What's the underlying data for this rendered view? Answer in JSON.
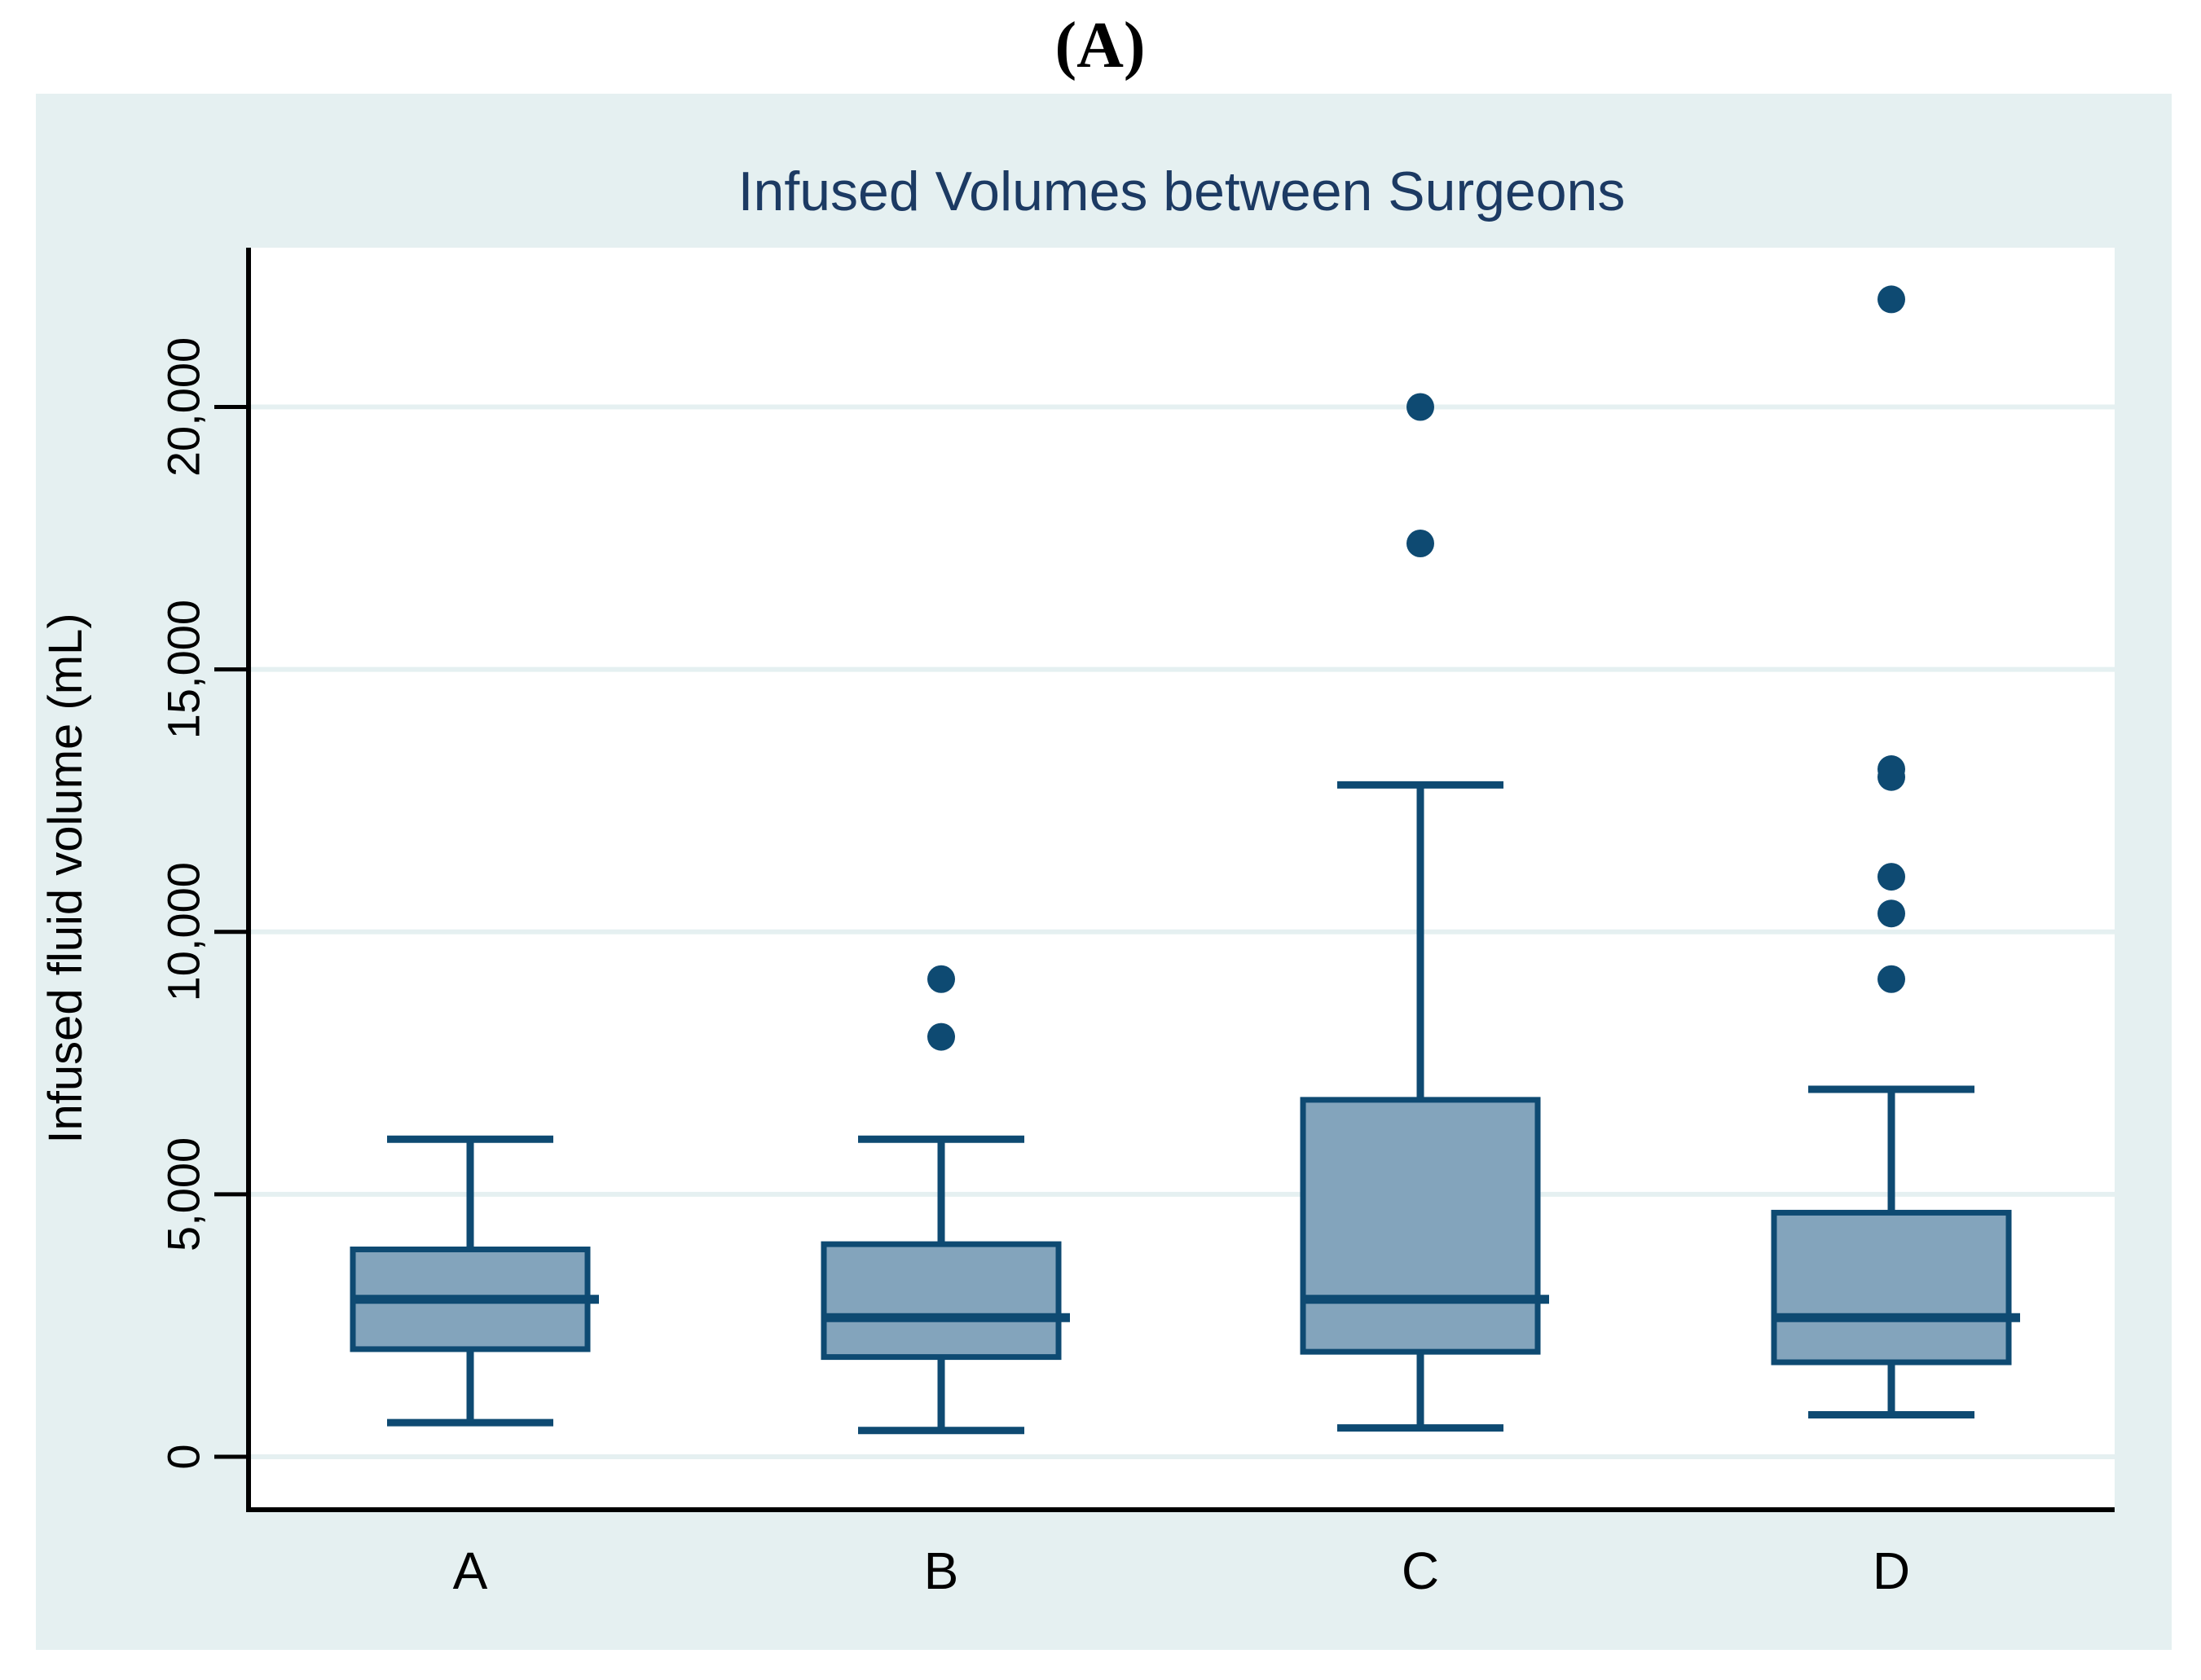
{
  "figure_label": "(A)",
  "chart_data": {
    "type": "box",
    "title": "Infused Volumes between Surgeons",
    "ylabel": "Infused fluid volume (mL)",
    "xlabel": "",
    "categories": [
      "A",
      "B",
      "C",
      "D"
    ],
    "ylim": [
      0,
      22500
    ],
    "yticks": [
      0,
      5000,
      10000,
      15000,
      20000
    ],
    "ytick_labels": [
      "0",
      "5,000",
      "10,000",
      "15,000",
      "20,000"
    ],
    "grid": "horizontal-gridlines-on",
    "legend": "none",
    "series": [
      {
        "category": "A",
        "min": 650,
        "q1": 2050,
        "median": 3000,
        "q3": 3950,
        "max": 6050,
        "outliers": []
      },
      {
        "category": "B",
        "min": 500,
        "q1": 1900,
        "median": 2650,
        "q3": 4050,
        "max": 6050,
        "outliers": [
          8000,
          9100
        ]
      },
      {
        "category": "C",
        "min": 550,
        "q1": 2000,
        "median": 3000,
        "q3": 6800,
        "max": 12800,
        "outliers": [
          17400,
          20000
        ]
      },
      {
        "category": "D",
        "min": 800,
        "q1": 1800,
        "median": 2650,
        "q3": 4650,
        "max": 7000,
        "outliers": [
          9100,
          10350,
          11050,
          12950,
          13100,
          22050
        ]
      }
    ],
    "colors": {
      "panel_background": "#e5f0f1",
      "plot_background": "#ffffff",
      "gridline": "#e5f0f1",
      "box_fill": "#83a4bc",
      "box_border": "#0e4a72",
      "whisker": "#0e4a72",
      "outlier": "#0e4a72",
      "axis_line": "#000000",
      "tick_text": "#000000",
      "title_text": "#1c3a63"
    }
  }
}
